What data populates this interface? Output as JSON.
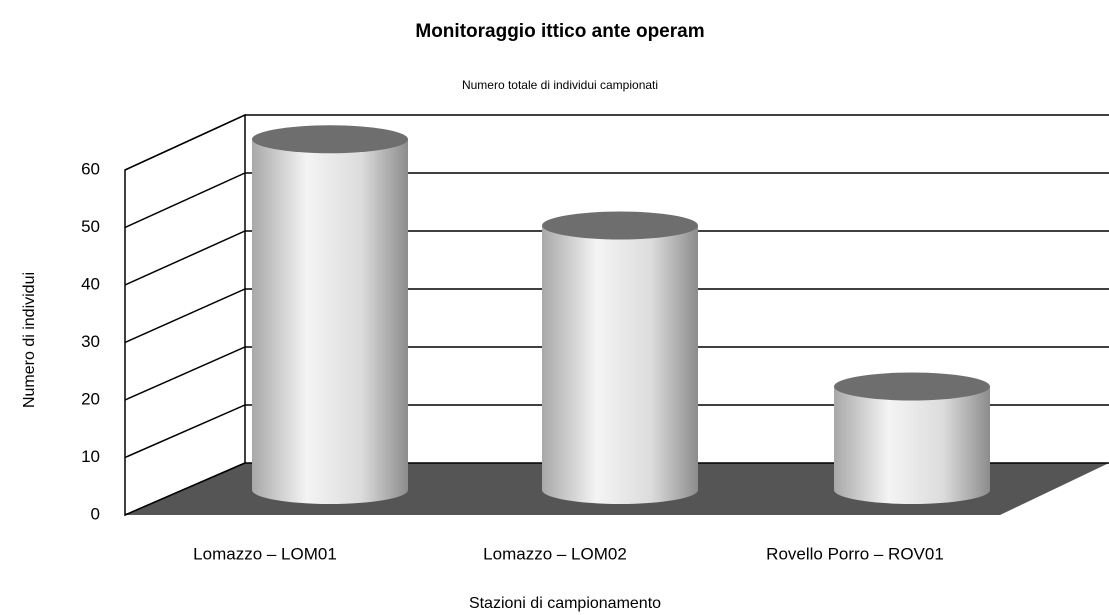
{
  "chart_data": {
    "type": "bar",
    "title": "Monitoraggio ittico ante operam",
    "subtitle": "Numero totale di individui campionati",
    "x_label": "Stazioni di campionamento",
    "y_label": "Numero di individui",
    "categories": [
      "Lomazzo – LOM01",
      "Lomazzo – LOM02",
      "Rovello Porro – ROV01"
    ],
    "values": [
      61,
      46,
      18
    ],
    "color": "#d9d9d9",
    "ylim": [
      0,
      60
    ],
    "yticks": [
      0,
      10,
      20,
      30,
      40,
      50,
      60
    ],
    "grid": true
  }
}
